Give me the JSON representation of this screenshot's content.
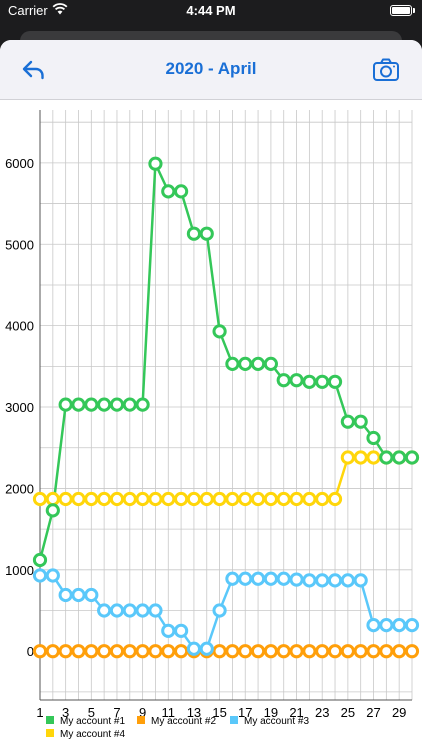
{
  "status_bar": {
    "carrier": "Carrier",
    "time": "4:44 PM"
  },
  "nav": {
    "title": "2020 - April",
    "back_icon": "back-arrow-icon",
    "camera_icon": "camera-icon"
  },
  "colors": {
    "accent": "#1a6fd6",
    "green": "#34c759",
    "orange": "#ff9f0a",
    "blue": "#5ac8fa",
    "yellow": "#ffd60a"
  },
  "chart_data": {
    "type": "line",
    "x": [
      1,
      2,
      3,
      4,
      5,
      6,
      7,
      8,
      9,
      10,
      11,
      12,
      13,
      14,
      15,
      16,
      17,
      18,
      19,
      20,
      21,
      22,
      23,
      24,
      25,
      26,
      27,
      28,
      29,
      30
    ],
    "xticks": [
      1,
      3,
      5,
      7,
      9,
      11,
      13,
      15,
      17,
      19,
      21,
      23,
      25,
      27,
      29
    ],
    "yticks": [
      0,
      1000,
      2000,
      3000,
      4000,
      5000,
      6000
    ],
    "ylim": [
      -600,
      6650
    ],
    "xlim": [
      1,
      30
    ],
    "grid": true,
    "legend_position": "bottom",
    "series": [
      {
        "name": "My account #1",
        "color": "#34c759",
        "values": [
          1120,
          1730,
          3030,
          3030,
          3030,
          3030,
          3030,
          3030,
          3030,
          5990,
          5650,
          5650,
          5130,
          5130,
          3930,
          3530,
          3530,
          3530,
          3530,
          3330,
          3330,
          3310,
          3310,
          3310,
          2820,
          2820,
          2620,
          2380,
          2380,
          2380
        ]
      },
      {
        "name": "My account #2",
        "color": "#ff9f0a",
        "values": [
          0,
          0,
          0,
          0,
          0,
          0,
          0,
          0,
          0,
          0,
          0,
          0,
          0,
          0,
          0,
          0,
          0,
          0,
          0,
          0,
          0,
          0,
          0,
          0,
          0,
          0,
          0,
          0,
          0,
          0
        ]
      },
      {
        "name": "My account #3",
        "color": "#5ac8fa",
        "values": [
          930,
          930,
          690,
          690,
          690,
          500,
          500,
          500,
          500,
          500,
          250,
          250,
          30,
          30,
          500,
          890,
          890,
          890,
          890,
          890,
          880,
          870,
          870,
          870,
          870,
          870,
          320,
          320,
          320,
          320
        ]
      },
      {
        "name": "My account #4",
        "color": "#ffd60a",
        "values": [
          1870,
          1870,
          1870,
          1870,
          1870,
          1870,
          1870,
          1870,
          1870,
          1870,
          1870,
          1870,
          1870,
          1870,
          1870,
          1870,
          1870,
          1870,
          1870,
          1870,
          1870,
          1870,
          1870,
          1870,
          2380,
          2380,
          2380,
          2380,
          2380,
          2380
        ]
      }
    ]
  }
}
